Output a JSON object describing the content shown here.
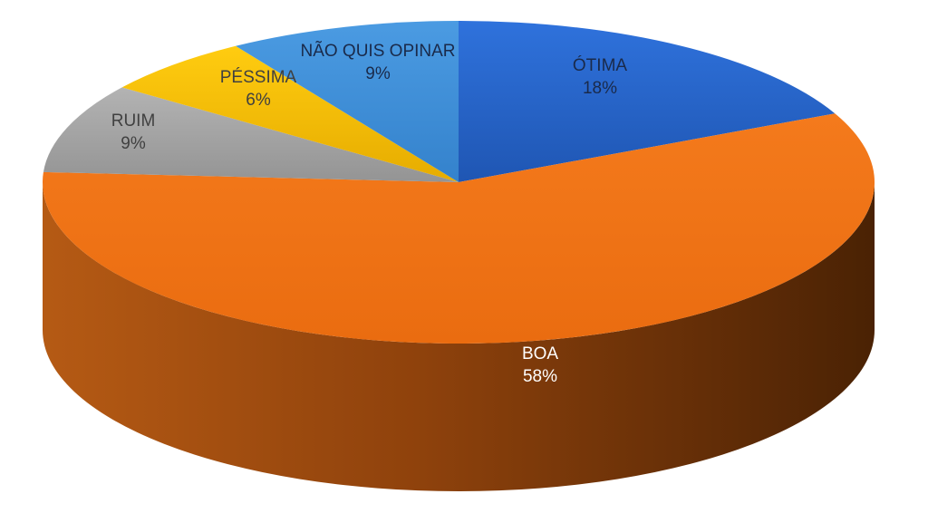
{
  "chart_data": {
    "type": "pie",
    "style": "3d",
    "title": "",
    "slices": [
      {
        "label": "ÓTIMA",
        "value": 18,
        "value_label": "18%",
        "color": "#2e6bd3"
      },
      {
        "label": "BOA",
        "value": 58,
        "value_label": "58%",
        "color": "#f07418"
      },
      {
        "label": "RUIM",
        "value": 9,
        "value_label": "9%",
        "color": "#a3a3a3"
      },
      {
        "label": "PÉSSIMA",
        "value": 6,
        "value_label": "6%",
        "color": "#f5bd00"
      },
      {
        "label": "NÃO QUIS OPINAR",
        "value": 9,
        "value_label": "9%",
        "color": "#3d8fd8"
      }
    ],
    "legend": "none"
  }
}
